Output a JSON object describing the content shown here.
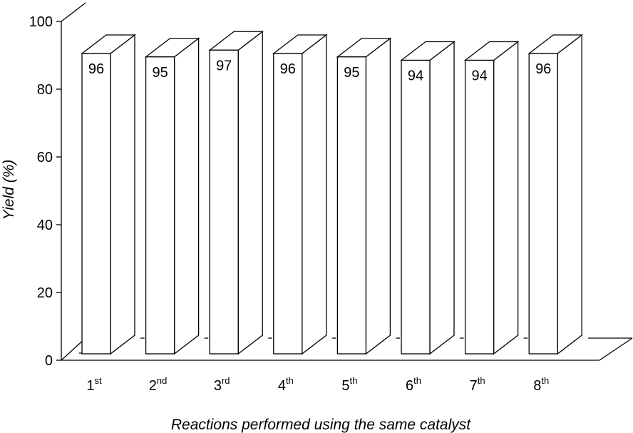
{
  "chart_data": {
    "type": "bar",
    "style": "3d",
    "categories": [
      "1st",
      "2nd",
      "3rd",
      "4th",
      "5th",
      "6th",
      "7th",
      "8th"
    ],
    "category_labels": [
      {
        "base": "1",
        "sup": "st"
      },
      {
        "base": "2",
        "sup": "nd"
      },
      {
        "base": "3",
        "sup": "rd"
      },
      {
        "base": "4",
        "sup": "th"
      },
      {
        "base": "5",
        "sup": "th"
      },
      {
        "base": "6",
        "sup": "th"
      },
      {
        "base": "7",
        "sup": "th"
      },
      {
        "base": "8",
        "sup": "th"
      }
    ],
    "values": [
      96,
      95,
      97,
      96,
      95,
      94,
      94,
      96
    ],
    "data_labels": [
      "96",
      "95",
      "97",
      "96",
      "95",
      "94",
      "94",
      "96"
    ],
    "title": "",
    "xlabel": "Reactions performed using the same catalyst",
    "ylabel": "Yield (%)",
    "ylim": [
      0,
      100
    ],
    "yticks": [
      "0",
      "20",
      "40",
      "60",
      "80",
      "100"
    ],
    "grid": false,
    "legend": "none",
    "colors": {
      "bar_fill": "#ffffff",
      "outline": "#000000",
      "text": "#000000"
    }
  }
}
